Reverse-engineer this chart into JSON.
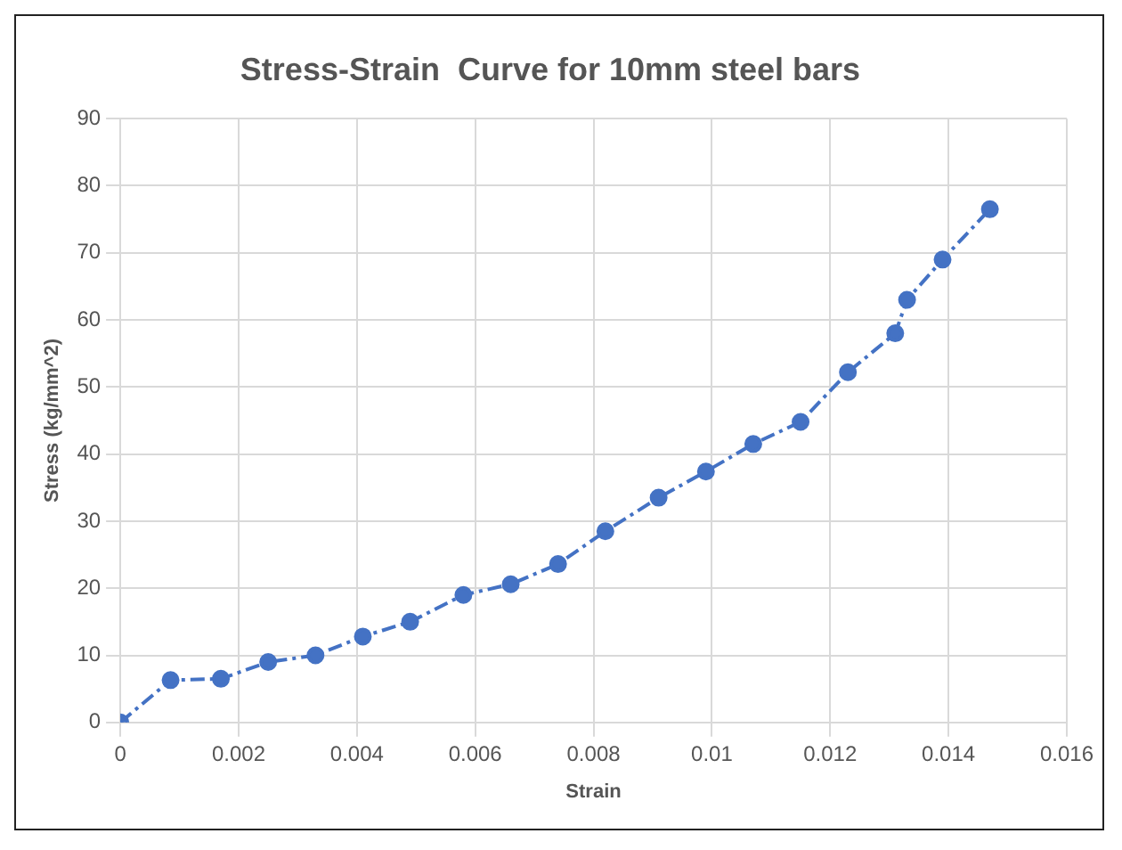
{
  "chart_data": {
    "type": "line",
    "title": "Stress-Strain  Curve for 10mm steel bars",
    "xlabel": "Strain",
    "ylabel": "Stress (kg/mm^2)",
    "x": [
      0,
      0.00085,
      0.0017,
      0.0025,
      0.0033,
      0.0041,
      0.0049,
      0.0058,
      0.0066,
      0.0074,
      0.0082,
      0.0091,
      0.0099,
      0.0107,
      0.0115,
      0.0123,
      0.0131,
      0.0133,
      0.0139,
      0.0147
    ],
    "series": [
      {
        "color": "#4472c4",
        "values": [
          0,
          6.3,
          6.5,
          9,
          10,
          12.8,
          15,
          19,
          20.6,
          23.6,
          28.5,
          33.5,
          37.4,
          41.5,
          44.8,
          52.2,
          58,
          63,
          69,
          76.5
        ]
      }
    ],
    "xlim": [
      0,
      0.016
    ],
    "xticks": [
      0,
      0.002,
      0.004,
      0.006,
      0.008,
      0.01,
      0.012,
      0.014,
      0.016
    ],
    "ylim": [
      0,
      90
    ],
    "yticks": [
      0,
      10,
      20,
      30,
      40,
      50,
      60,
      70,
      80,
      90
    ],
    "grid": true,
    "legend": false,
    "marker": "circle",
    "line_style": "dashed"
  }
}
